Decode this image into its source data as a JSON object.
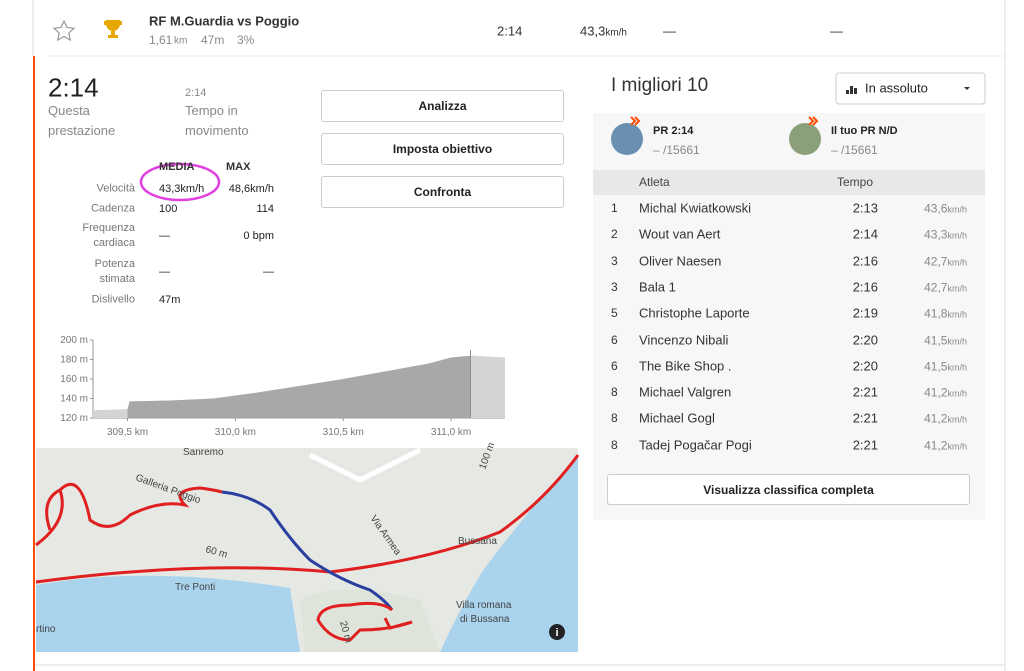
{
  "segment": {
    "name": "RF M.Guardia vs Poggio",
    "distance": "1,61",
    "distance_unit": "km",
    "elevation": "47m",
    "grade": "3%",
    "time": "2:14",
    "speed": "43,3",
    "speed_unit": "km/h",
    "extra_1": "—",
    "extra_2": "—"
  },
  "effort": {
    "time": "2:14",
    "time_label": "Questa prestazione",
    "moving_time": "2:14",
    "moving_time_label": "Tempo in movimento",
    "stats": {
      "headers": [
        "MEDIA",
        "MAX"
      ],
      "rows": [
        [
          "Velocità",
          "43,3km/h",
          "48,6km/h"
        ],
        [
          "Cadenza",
          "100",
          "114"
        ],
        [
          "Frequenza cardiaca",
          "—",
          "0 bpm"
        ],
        [
          "Potenza stimata",
          "—",
          "—"
        ],
        [
          "Dislivello",
          "47m"
        ]
      ]
    },
    "buttons": [
      "Analizza",
      "Imposta obiettivo",
      "Confronta"
    ]
  },
  "elevation_chart": {
    "type": "area",
    "x": [
      309.34,
      309.5,
      309.51,
      309.7,
      309.9,
      310.1,
      310.3,
      310.5,
      310.7,
      310.9,
      311.0,
      311.1,
      311.25
    ],
    "values": [
      128,
      129,
      137,
      138,
      140,
      146,
      153,
      160,
      168,
      176,
      182,
      184,
      182
    ],
    "xlim": [
      309.34,
      311.25
    ],
    "ylim": [
      120,
      200
    ],
    "highlight_xlim": [
      309.5,
      311.09
    ],
    "yticks": [
      {
        "value": 120,
        "label": "120 m"
      },
      {
        "value": 140,
        "label": "140 m"
      },
      {
        "value": 160,
        "label": "160 m"
      },
      {
        "value": 180,
        "label": "180 m"
      },
      {
        "value": 200,
        "label": "200 m"
      }
    ],
    "xticks": [
      {
        "value": 309.5,
        "label": "309,5 km"
      },
      {
        "value": 310.0,
        "label": "310,0 km"
      },
      {
        "value": 310.5,
        "label": "310,5 km"
      },
      {
        "value": 311.0,
        "label": "311,0 km"
      }
    ],
    "color": "#a8a8a8",
    "highlight_color": "#8f8f8f"
  },
  "map": {
    "labels": [
      "Sanremo",
      "Galleria Poggio",
      "Via Armea",
      "Bussana",
      "Tre Ponti",
      "Villa romana",
      "di Bussana",
      "rtino",
      "60 m",
      "100 m",
      "20 m"
    ],
    "info": "i"
  },
  "leaderboard": {
    "title": "I migliori 10",
    "filter": "In assoluto",
    "cards": [
      {
        "label": "PR",
        "value": "2:14",
        "rank": "– /15661"
      },
      {
        "label": "Il tuo PR",
        "value": "N/D",
        "rank": "– /15661"
      }
    ],
    "headers": [
      "Atleta",
      "Tempo"
    ],
    "speed_unit": "km/h",
    "rows": [
      [
        "1",
        "Michal Kwiatkowski",
        "2:13",
        "43,6"
      ],
      [
        "2",
        "Wout van Aert",
        "2:14",
        "43,3"
      ],
      [
        "3",
        "Oliver Naesen",
        "2:16",
        "42,7"
      ],
      [
        "3",
        "Bala 1",
        "2:16",
        "42,7"
      ],
      [
        "5",
        "Christophe Laporte",
        "2:19",
        "41,8"
      ],
      [
        "6",
        "Vincenzo Nibali",
        "2:20",
        "41,5"
      ],
      [
        "6",
        "The Bike Shop .",
        "2:20",
        "41,5"
      ],
      [
        "8",
        "Michael Valgren",
        "2:21",
        "41,2"
      ],
      [
        "8",
        "Michael Gogl",
        "2:21",
        "41,2"
      ],
      [
        "8",
        "Tadej Pogačar Pogi",
        "2:21",
        "41,2"
      ]
    ],
    "button": "Visualizza classifica completa"
  }
}
